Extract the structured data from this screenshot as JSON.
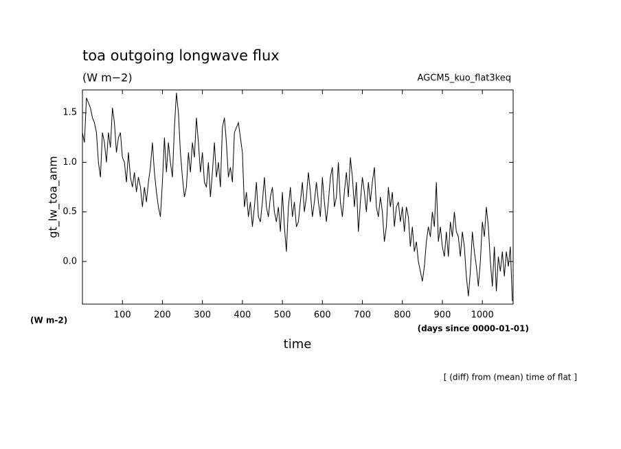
{
  "chart_data": {
    "type": "line",
    "title": "toa outgoing longwave flux",
    "subtitle": "(W m−2)",
    "run_label": "AGCM5_kuo_flat3keq",
    "y_label": "gt_lw_toa_anm",
    "y_unit": "(W m-2)",
    "x_unit": "(days since 0000-01-01)",
    "x_label": "time",
    "note": "[ (diff) from (mean) time of flat ]",
    "color": "#000000",
    "xlim": [
      0,
      1077
    ],
    "ylim": [
      -0.43,
      1.73
    ],
    "xticks": [
      100,
      200,
      300,
      400,
      500,
      600,
      700,
      800,
      900,
      1000
    ],
    "yticks": [
      {
        "value": 0,
        "label": "0.0"
      },
      0.5,
      {
        "value": 1,
        "label": "1.0"
      },
      1.5
    ],
    "x": [
      0,
      5,
      10,
      15,
      20,
      25,
      30,
      35,
      40,
      45,
      50,
      55,
      60,
      65,
      70,
      75,
      80,
      85,
      90,
      95,
      100,
      105,
      110,
      115,
      120,
      125,
      130,
      135,
      140,
      145,
      150,
      155,
      160,
      165,
      170,
      175,
      180,
      185,
      190,
      195,
      200,
      205,
      210,
      215,
      220,
      225,
      230,
      235,
      240,
      245,
      250,
      255,
      260,
      265,
      270,
      275,
      280,
      285,
      290,
      295,
      300,
      305,
      310,
      315,
      320,
      325,
      330,
      335,
      340,
      345,
      350,
      355,
      360,
      365,
      370,
      375,
      380,
      385,
      390,
      395,
      400,
      405,
      410,
      415,
      420,
      425,
      430,
      435,
      440,
      445,
      450,
      455,
      460,
      465,
      470,
      475,
      480,
      485,
      490,
      495,
      500,
      505,
      510,
      515,
      520,
      525,
      530,
      535,
      540,
      545,
      550,
      555,
      560,
      565,
      570,
      575,
      580,
      585,
      590,
      595,
      600,
      605,
      610,
      615,
      620,
      625,
      630,
      635,
      640,
      645,
      650,
      655,
      660,
      665,
      670,
      675,
      680,
      685,
      690,
      695,
      700,
      705,
      710,
      715,
      720,
      725,
      730,
      735,
      740,
      745,
      750,
      755,
      760,
      765,
      770,
      775,
      780,
      785,
      790,
      795,
      800,
      805,
      810,
      815,
      820,
      825,
      830,
      835,
      840,
      845,
      850,
      855,
      860,
      865,
      870,
      875,
      880,
      885,
      890,
      895,
      900,
      905,
      910,
      915,
      920,
      925,
      930,
      935,
      940,
      945,
      950,
      955,
      960,
      965,
      970,
      975,
      980,
      985,
      990,
      995,
      1000,
      1005,
      1010,
      1015,
      1020,
      1025,
      1030,
      1035,
      1040,
      1045,
      1050,
      1055,
      1060,
      1065,
      1070,
      1075
    ],
    "values": [
      1.3,
      1.2,
      1.65,
      1.6,
      1.55,
      1.45,
      1.4,
      1.3,
      1.0,
      0.85,
      1.3,
      1.2,
      1.0,
      1.3,
      1.15,
      1.55,
      1.4,
      1.1,
      1.25,
      1.3,
      1.05,
      1.0,
      0.8,
      1.1,
      0.85,
      0.75,
      0.9,
      0.7,
      0.85,
      0.75,
      0.55,
      0.75,
      0.6,
      0.8,
      0.95,
      1.2,
      0.9,
      0.7,
      0.55,
      0.45,
      0.8,
      1.25,
      0.9,
      1.2,
      1.0,
      0.85,
      1.35,
      1.7,
      1.5,
      1.1,
      0.85,
      0.65,
      0.75,
      1.1,
      0.9,
      1.2,
      1.05,
      1.45,
      1.2,
      0.9,
      1.1,
      0.8,
      0.75,
      1.0,
      0.65,
      0.9,
      1.2,
      0.85,
      1.0,
      0.75,
      1.35,
      1.45,
      1.2,
      0.85,
      0.95,
      0.8,
      1.3,
      1.35,
      1.4,
      1.25,
      1.1,
      0.55,
      0.7,
      0.45,
      0.6,
      0.35,
      0.55,
      0.8,
      0.45,
      0.4,
      0.6,
      0.85,
      0.55,
      0.45,
      0.65,
      0.75,
      0.5,
      0.4,
      0.55,
      0.3,
      0.7,
      0.35,
      0.1,
      0.55,
      0.75,
      0.45,
      0.6,
      0.35,
      0.4,
      0.6,
      0.8,
      0.5,
      0.65,
      0.9,
      0.7,
      0.45,
      0.6,
      0.8,
      0.6,
      0.45,
      0.85,
      0.6,
      0.4,
      0.6,
      0.85,
      0.95,
      0.55,
      0.65,
      1.0,
      0.6,
      0.45,
      0.7,
      0.9,
      0.65,
      1.05,
      0.85,
      0.55,
      0.8,
      0.3,
      0.6,
      0.85,
      0.7,
      0.5,
      0.8,
      0.6,
      0.8,
      0.95,
      0.55,
      0.45,
      0.65,
      0.5,
      0.2,
      0.35,
      0.75,
      0.55,
      0.7,
      0.35,
      0.55,
      0.6,
      0.4,
      0.55,
      0.3,
      0.55,
      0.45,
      0.15,
      0.35,
      0.1,
      0.2,
      0.0,
      -0.1,
      -0.2,
      -0.05,
      0.2,
      0.35,
      0.25,
      0.5,
      0.35,
      0.8,
      0.2,
      0.35,
      0.15,
      0.05,
      0.3,
      0.05,
      0.4,
      0.25,
      0.5,
      0.3,
      0.25,
      0.05,
      0.3,
      0.15,
      -0.15,
      -0.35,
      -0.1,
      0.3,
      0.1,
      -0.05,
      -0.25,
      0.0,
      0.4,
      0.25,
      0.55,
      0.35,
      0.0,
      -0.25,
      0.15,
      -0.3,
      0.05,
      -0.1,
      0.1,
      -0.15,
      0.1,
      -0.05,
      0.15,
      -0.4
    ]
  }
}
